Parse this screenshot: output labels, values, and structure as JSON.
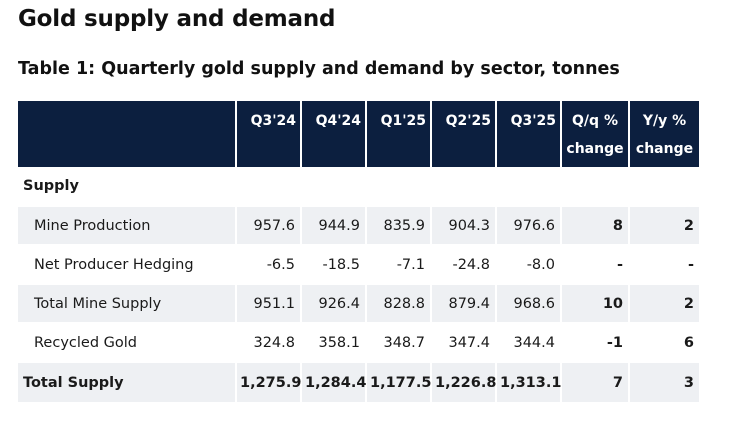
{
  "page_title": "Gold supply and demand",
  "table_title": "Table 1: Quarterly gold supply and demand by sector, tonnes",
  "columns": {
    "c1": "Q3'24",
    "c2": "Q4'24",
    "c3": "Q1'25",
    "c4": "Q2'25",
    "c5": "Q3'25",
    "qq_line1": "Q/q %",
    "qq_line2": "change",
    "yy_line1": "Y/y %",
    "yy_line2": "change"
  },
  "section_label": "Supply",
  "rows": [
    {
      "label": "Mine Production",
      "values": [
        "957.6",
        "944.9",
        "835.9",
        "904.3",
        "976.6"
      ],
      "qq": "8",
      "yy": "2"
    },
    {
      "label": "Net Producer Hedging",
      "values": [
        "-6.5",
        "-18.5",
        "-7.1",
        "-24.8",
        "-8.0"
      ],
      "qq": "-",
      "yy": "-"
    },
    {
      "label": "Total Mine Supply",
      "values": [
        "951.1",
        "926.4",
        "828.8",
        "879.4",
        "968.6"
      ],
      "qq": "10",
      "yy": "2"
    },
    {
      "label": "Recycled Gold",
      "values": [
        "324.8",
        "358.1",
        "348.7",
        "347.4",
        "344.4"
      ],
      "qq": "-1",
      "yy": "6"
    }
  ],
  "total": {
    "label": "Total Supply",
    "values": [
      "1,275.9",
      "1,284.4",
      "1,177.5",
      "1,226.8",
      "1,313.1"
    ],
    "qq": "7",
    "yy": "3"
  },
  "colors": {
    "header_bg": "#0c1f3f",
    "row_shade": "#eef0f3"
  }
}
